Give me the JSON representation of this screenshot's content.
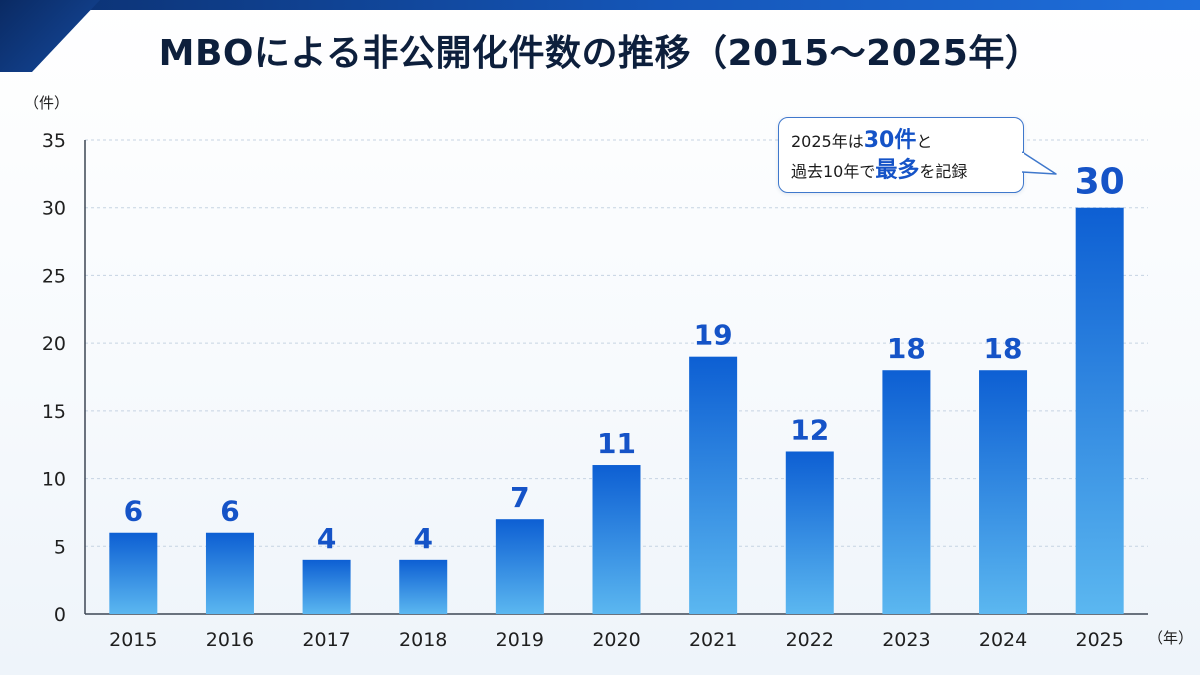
{
  "title": "MBOによる非公開化件数の推移（2015～2025年）",
  "colors": {
    "bar_top": "#0d5fd3",
    "bar_bottom": "#5bb7f0",
    "value_label": "#1553c7",
    "grid": "#c6d3e2",
    "axis_text": "#1f1f1f",
    "title_text": "#0d1f3c",
    "callout_border": "#3f78cc"
  },
  "callout": {
    "part1": "2025年は",
    "highlight1": "30件",
    "part2": "と",
    "part3": "過去10年で",
    "highlight2": "最多",
    "part4": "を記録"
  },
  "chart_data": {
    "type": "bar",
    "title": "MBOによる非公開化件数の推移（2015～2025年）",
    "categories": [
      "2015",
      "2016",
      "2017",
      "2018",
      "2019",
      "2020",
      "2021",
      "2022",
      "2023",
      "2024",
      "2025"
    ],
    "values": [
      6,
      6,
      4,
      4,
      7,
      11,
      19,
      12,
      18,
      18,
      30
    ],
    "value_labels": [
      "6",
      "6",
      "4",
      "4",
      "7",
      "11",
      "19",
      "12",
      "18",
      "18",
      "30"
    ],
    "ylabel": "（件）",
    "xlabel": "（年）",
    "ylim": [
      0,
      35
    ],
    "yticks": [
      0,
      5,
      10,
      15,
      20,
      25,
      30,
      35
    ],
    "grid": true,
    "legend": "none"
  }
}
